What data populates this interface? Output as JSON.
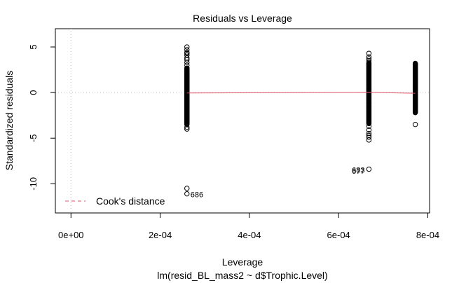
{
  "chart_data": {
    "type": "scatter",
    "title": "Residuals vs Leverage",
    "subtitle": "lm(resid_BL_mass2 ~ d$Trophic.Level)",
    "xlabel": "Leverage",
    "ylabel": "Standardized residuals",
    "xlim": [
      -3.5e-05,
      0.000804
    ],
    "ylim": [
      -13.2,
      7.0
    ],
    "x_ticks": [
      0,
      0.0002,
      0.0004,
      0.0006,
      0.0008
    ],
    "x_tick_labels": [
      "0e+00",
      "2e-04",
      "4e-04",
      "6e-04",
      "8e-04"
    ],
    "y_ticks": [
      5,
      0,
      -5,
      -10
    ],
    "y_tick_labels": [
      "5",
      "0",
      "-5",
      "-10"
    ],
    "grid": false,
    "reference_lines": {
      "vertical_x": 0,
      "horizontal_y": 0,
      "style": "dotted",
      "color": "#bebebe"
    },
    "clusters": [
      {
        "x": 0.00026,
        "ymin": -3.5,
        "ymax": 2.7,
        "outliers": [
          5.0,
          4.7,
          4.4,
          4.3,
          4.1,
          3.8,
          3.6,
          3.3,
          3.0,
          -3.8,
          -4.0,
          -10.5,
          -11.1
        ]
      },
      {
        "x": 0.000668,
        "ymin": -3.4,
        "ymax": 3.3,
        "outliers": [
          4.3,
          3.9,
          3.7,
          3.5,
          -3.7,
          -4.1,
          -4.5,
          -4.7,
          -4.9,
          -5.2,
          -8.4
        ]
      },
      {
        "x": 0.000772,
        "ymin": -2.2,
        "ymax": 3.2,
        "outliers": [
          -3.5
        ]
      }
    ],
    "smoother": {
      "color": "#DF536B",
      "points": [
        [
          0.00026,
          -0.05
        ],
        [
          0.000668,
          0.02
        ],
        [
          0.000772,
          -0.08
        ]
      ]
    },
    "point_labels": [
      {
        "text": "686",
        "x": 0.00026,
        "y": -11.1
      },
      {
        "text": "683",
        "x": 0.000668,
        "y": -8.4
      },
      {
        "text": "677",
        "x": 0.000668,
        "y": -8.5
      }
    ],
    "legend": {
      "entries": [
        {
          "label": "Cook's distance",
          "color": "#DF536B",
          "style": "dashed"
        }
      ],
      "position": "bottom-left"
    }
  }
}
